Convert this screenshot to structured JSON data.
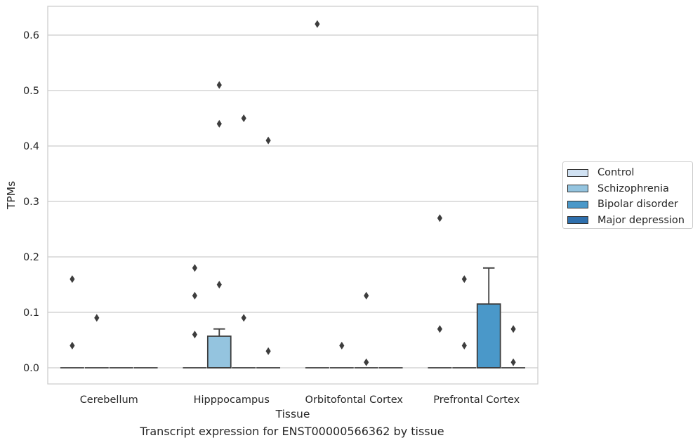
{
  "chart_data": {
    "type": "box",
    "xlabel": "Tissue",
    "ylabel": "TPMs",
    "ylim": [
      -0.03,
      0.655
    ],
    "yticks": [
      0.0,
      0.1,
      0.2,
      0.3,
      0.4,
      0.5,
      0.6
    ],
    "ytick_labels": [
      "0.0",
      "0.1",
      "0.2",
      "0.3",
      "0.4",
      "0.5",
      "0.6"
    ],
    "grid": "horizontal",
    "legend_position": "right",
    "categories": [
      "Cerebellum",
      "Hipppocampus",
      "Orbitofontal Cortex",
      "Prefrontal Cortex"
    ],
    "series": [
      {
        "name": "Control",
        "color": "#d0e1f2",
        "boxes": [
          {
            "category": "Cerebellum",
            "q1": 0,
            "median": 0,
            "q3": 0,
            "whisker_low": 0,
            "whisker_high": 0
          },
          {
            "category": "Hipppocampus",
            "q1": 0,
            "median": 0,
            "q3": 0,
            "whisker_low": 0,
            "whisker_high": 0
          },
          {
            "category": "Orbitofontal Cortex",
            "q1": 0,
            "median": 0,
            "q3": 0,
            "whisker_low": 0,
            "whisker_high": 0
          },
          {
            "category": "Prefrontal Cortex",
            "q1": 0,
            "median": 0,
            "q3": 0,
            "whisker_low": 0,
            "whisker_high": 0
          }
        ],
        "outliers": [
          {
            "category": "Cerebellum",
            "y": 0.16
          },
          {
            "category": "Cerebellum",
            "y": 0.04
          },
          {
            "category": "Hipppocampus",
            "y": 0.18
          },
          {
            "category": "Hipppocampus",
            "y": 0.13
          },
          {
            "category": "Hipppocampus",
            "y": 0.06
          },
          {
            "category": "Orbitofontal Cortex",
            "y": 0.62
          },
          {
            "category": "Prefrontal Cortex",
            "y": 0.27
          },
          {
            "category": "Prefrontal Cortex",
            "y": 0.07
          }
        ]
      },
      {
        "name": "Schizophrenia",
        "color": "#94c4df",
        "boxes": [
          {
            "category": "Cerebellum",
            "q1": 0,
            "median": 0,
            "q3": 0,
            "whisker_low": 0,
            "whisker_high": 0
          },
          {
            "category": "Hipppocampus",
            "q1": 0,
            "median": 0,
            "q3": 0.057,
            "whisker_low": 0,
            "whisker_high": 0.07
          },
          {
            "category": "Orbitofontal Cortex",
            "q1": 0,
            "median": 0,
            "q3": 0,
            "whisker_low": 0,
            "whisker_high": 0
          },
          {
            "category": "Prefrontal Cortex",
            "q1": 0,
            "median": 0,
            "q3": 0,
            "whisker_low": 0,
            "whisker_high": 0
          }
        ],
        "outliers": [
          {
            "category": "Cerebellum",
            "y": 0.09
          },
          {
            "category": "Hipppocampus",
            "y": 0.51
          },
          {
            "category": "Hipppocampus",
            "y": 0.44
          },
          {
            "category": "Hipppocampus",
            "y": 0.15
          },
          {
            "category": "Orbitofontal Cortex",
            "y": 0.04
          },
          {
            "category": "Prefrontal Cortex",
            "y": 0.16
          },
          {
            "category": "Prefrontal Cortex",
            "y": 0.04
          }
        ]
      },
      {
        "name": "Bipolar disorder",
        "color": "#4a98c9",
        "boxes": [
          {
            "category": "Cerebellum",
            "q1": 0,
            "median": 0,
            "q3": 0,
            "whisker_low": 0,
            "whisker_high": 0
          },
          {
            "category": "Hipppocampus",
            "q1": 0,
            "median": 0,
            "q3": 0,
            "whisker_low": 0,
            "whisker_high": 0
          },
          {
            "category": "Orbitofontal Cortex",
            "q1": 0,
            "median": 0,
            "q3": 0,
            "whisker_low": 0,
            "whisker_high": 0
          },
          {
            "category": "Prefrontal Cortex",
            "q1": 0,
            "median": 0,
            "q3": 0.115,
            "whisker_low": 0,
            "whisker_high": 0.18
          }
        ],
        "outliers": [
          {
            "category": "Hipppocampus",
            "y": 0.45
          },
          {
            "category": "Hipppocampus",
            "y": 0.09
          },
          {
            "category": "Orbitofontal Cortex",
            "y": 0.13
          },
          {
            "category": "Orbitofontal Cortex",
            "y": 0.01
          }
        ]
      },
      {
        "name": "Major depression",
        "color": "#2e6fad",
        "boxes": [
          {
            "category": "Cerebellum",
            "q1": 0,
            "median": 0,
            "q3": 0,
            "whisker_low": 0,
            "whisker_high": 0
          },
          {
            "category": "Hipppocampus",
            "q1": 0,
            "median": 0,
            "q3": 0,
            "whisker_low": 0,
            "whisker_high": 0
          },
          {
            "category": "Orbitofontal Cortex",
            "q1": 0,
            "median": 0,
            "q3": 0,
            "whisker_low": 0,
            "whisker_high": 0
          },
          {
            "category": "Prefrontal Cortex",
            "q1": 0,
            "median": 0,
            "q3": 0,
            "whisker_low": 0,
            "whisker_high": 0
          }
        ],
        "outliers": [
          {
            "category": "Hipppocampus",
            "y": 0.41
          },
          {
            "category": "Hipppocampus",
            "y": 0.03
          },
          {
            "category": "Prefrontal Cortex",
            "y": 0.07
          },
          {
            "category": "Prefrontal Cortex",
            "y": 0.01
          }
        ]
      }
    ]
  },
  "legend": {
    "items": [
      {
        "label": "Control",
        "color": "#d0e1f2"
      },
      {
        "label": "Schizophrenia",
        "color": "#94c4df"
      },
      {
        "label": "Bipolar disorder",
        "color": "#4a98c9"
      },
      {
        "label": "Major depression",
        "color": "#2e6fad"
      }
    ]
  },
  "caption": "Transcript expression for ENST00000566362 by tissue"
}
